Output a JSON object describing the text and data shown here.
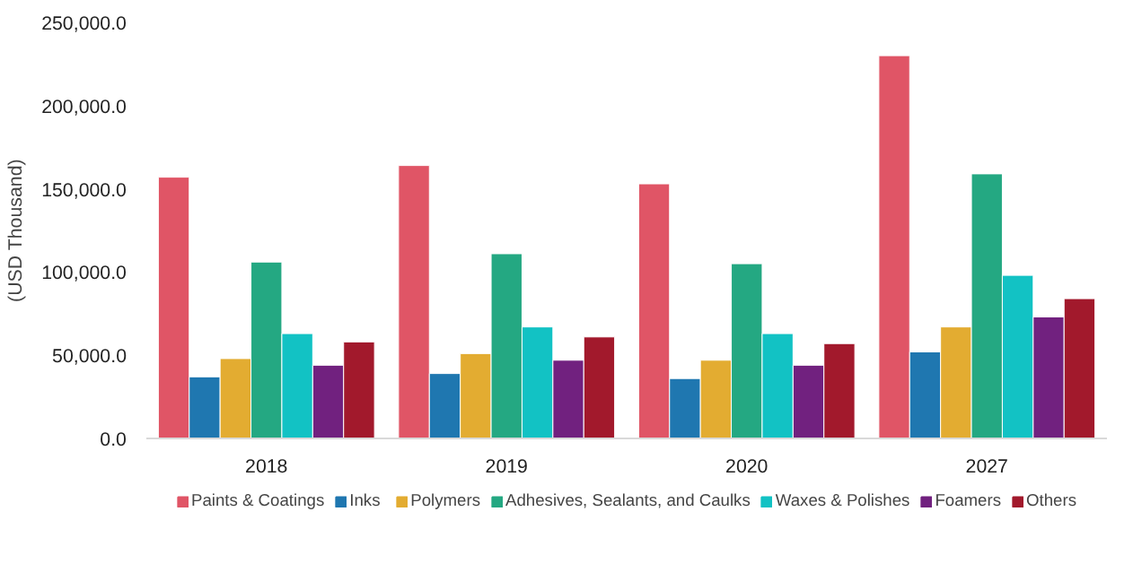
{
  "chart_data": {
    "type": "bar",
    "ylabel": "(USD Thousand)",
    "categories": [
      "2018",
      "2019",
      "2020",
      "2027"
    ],
    "series": [
      {
        "name": "Paints & Coatings",
        "color": "#e05566",
        "values": [
          157000,
          164000,
          153000,
          230000
        ]
      },
      {
        "name": "Inks",
        "color": "#1f77b0",
        "values": [
          37000,
          39000,
          36000,
          52000
        ]
      },
      {
        "name": "Polymers",
        "color": "#e3ac31",
        "values": [
          48000,
          51000,
          47000,
          67000
        ]
      },
      {
        "name": "Adhesives, Sealants, and Caulks",
        "color": "#24a882",
        "values": [
          106000,
          111000,
          105000,
          159000
        ]
      },
      {
        "name": "Waxes & Polishes",
        "color": "#12c2c4",
        "values": [
          63000,
          67000,
          63000,
          98000
        ]
      },
      {
        "name": "Foamers",
        "color": "#71217f",
        "values": [
          44000,
          47000,
          44000,
          73000
        ]
      },
      {
        "name": "Others",
        "color": "#a2192c",
        "values": [
          58000,
          61000,
          57000,
          84000
        ]
      }
    ],
    "ylim": [
      0,
      250000
    ],
    "yticks": [
      {
        "value": 0,
        "label": "0.0"
      },
      {
        "value": 50000,
        "label": "50,000.0"
      },
      {
        "value": 100000,
        "label": "100,000.0"
      },
      {
        "value": 150000,
        "label": "150,000.0"
      },
      {
        "value": 200000,
        "label": "200,000.0"
      },
      {
        "value": 250000,
        "label": "250,000.0"
      }
    ],
    "grid": false,
    "legend": "bottom"
  }
}
